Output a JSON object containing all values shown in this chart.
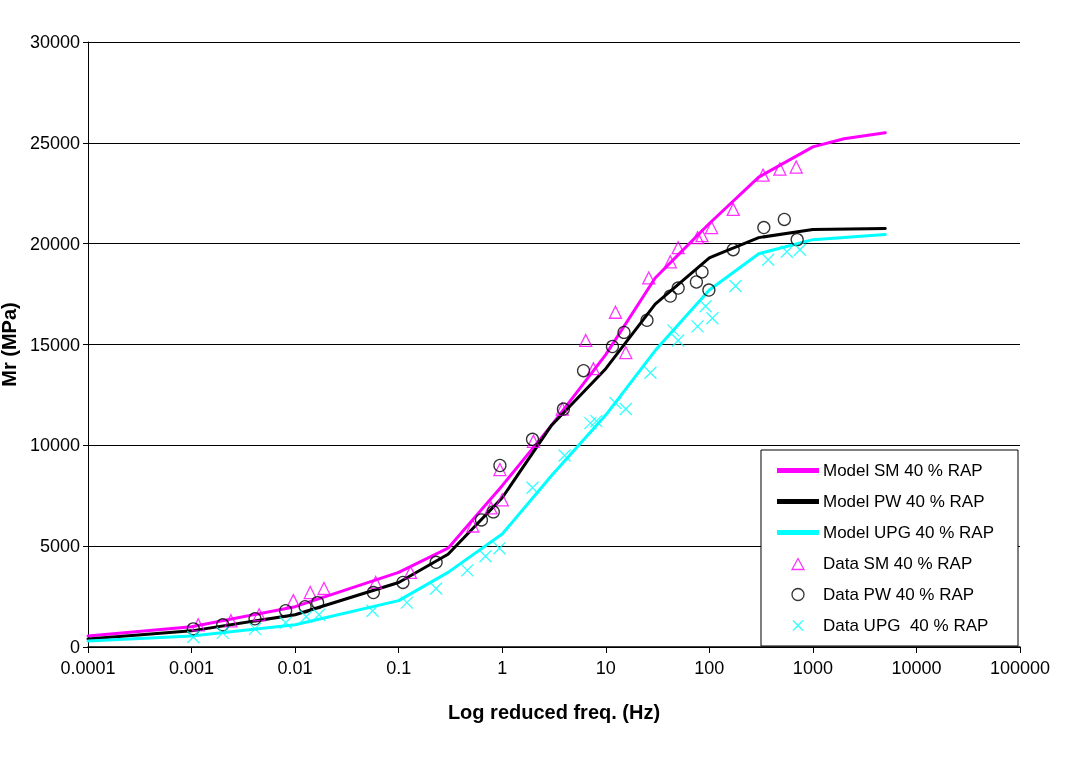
{
  "chart_data": {
    "type": "line",
    "xlabel": "Log reduced freq. (Hz)",
    "ylabel": "Mr (MPa)",
    "log": "x",
    "xlim": [
      0.0001,
      100000
    ],
    "xticks": [
      0.0001,
      0.001,
      0.01,
      0.1,
      1,
      10,
      100,
      1000,
      10000,
      100000
    ],
    "ylim": [
      0,
      30000
    ],
    "yticks": [
      0,
      5000,
      10000,
      15000,
      20000,
      25000,
      30000
    ],
    "grid": "y",
    "legend": "bottom right",
    "series": [
      {
        "name": "Model SM 40 % RAP",
        "marker": "none",
        "color": "#ff00ff",
        "x": [
          0.0001,
          0.001,
          0.01,
          0.1,
          0.3,
          1,
          3,
          10,
          30,
          100,
          300,
          1000,
          2000,
          5000
        ],
        "values": [
          550,
          1000,
          2000,
          3700,
          4900,
          8000,
          11000,
          14500,
          18300,
          21000,
          23300,
          24800,
          25200,
          25500
        ]
      },
      {
        "name": "Model PW 40 % RAP",
        "marker": "none",
        "color": "#000000",
        "x": [
          0.0001,
          0.001,
          0.01,
          0.1,
          0.3,
          1,
          3,
          10,
          30,
          100,
          300,
          1000,
          5000
        ],
        "values": [
          400,
          800,
          1600,
          3200,
          4600,
          7400,
          11000,
          13800,
          17000,
          19300,
          20300,
          20700,
          20750
        ]
      },
      {
        "name": "Model UPG 40 % RAP",
        "marker": "none",
        "color": "#00ffff",
        "x": [
          0.0001,
          0.001,
          0.01,
          0.1,
          0.3,
          1,
          3,
          10,
          30,
          100,
          300,
          1000,
          5000
        ],
        "values": [
          300,
          550,
          1100,
          2300,
          3700,
          5600,
          8500,
          11500,
          14700,
          17700,
          19500,
          20200,
          20450
        ]
      },
      {
        "name": "Data SM 40 % RAP",
        "type": "scatter",
        "marker": "triangle",
        "color": "#ff00ff",
        "x": [
          0.00116,
          0.0024,
          0.0045,
          0.0096,
          0.014,
          0.019,
          0.06,
          0.13,
          0.52,
          0.78,
          1,
          0.95,
          2,
          3.8,
          6.4,
          7.6,
          12.4,
          15.6,
          26,
          42,
          50,
          77,
          85,
          105,
          170,
          330,
          480,
          690
        ],
        "values": [
          1100,
          1300,
          1600,
          2300,
          2700,
          2900,
          3200,
          3700,
          6000,
          6900,
          7300,
          8800,
          10200,
          11800,
          15200,
          13800,
          16600,
          14600,
          18300,
          19100,
          19800,
          20300,
          20400,
          20800,
          21700,
          23400,
          23700,
          23800
        ]
      },
      {
        "name": "Data PW 40 % RAP",
        "type": "scatter",
        "marker": "circle",
        "color": "#000000",
        "x": [
          0.00104,
          0.002,
          0.0041,
          0.0081,
          0.0125,
          0.0165,
          0.057,
          0.11,
          0.23,
          0.63,
          0.82,
          0.95,
          1.96,
          3.9,
          6.1,
          11.6,
          15,
          25,
          42,
          50,
          75,
          85,
          99,
          170,
          336,
          530,
          705
        ],
        "values": [
          900,
          1100,
          1400,
          1800,
          2000,
          2200,
          2700,
          3200,
          4200,
          6300,
          6700,
          9000,
          10300,
          11800,
          13700,
          14900,
          15600,
          16200,
          17400,
          17800,
          18100,
          18600,
          17700,
          19700,
          20800,
          21200,
          20200
        ]
      },
      {
        "name": "Data UPG  40 % RAP",
        "type": "scatter",
        "marker": "cross",
        "color": "#00ffff",
        "x": [
          0.00104,
          0.002,
          0.0041,
          0.0081,
          0.0128,
          0.017,
          0.056,
          0.12,
          0.23,
          0.46,
          0.69,
          0.94,
          1.96,
          4,
          7.1,
          8.1,
          12.4,
          15.6,
          27,
          45,
          50,
          77,
          92,
          107,
          179,
          370,
          560,
          750
        ],
        "values": [
          500,
          700,
          900,
          1200,
          1500,
          1600,
          1800,
          2200,
          2900,
          3800,
          4500,
          4900,
          7900,
          9500,
          11100,
          11200,
          12100,
          11800,
          13600,
          15700,
          15200,
          15900,
          16900,
          16300,
          17900,
          19200,
          19600,
          19700
        ]
      }
    ]
  }
}
